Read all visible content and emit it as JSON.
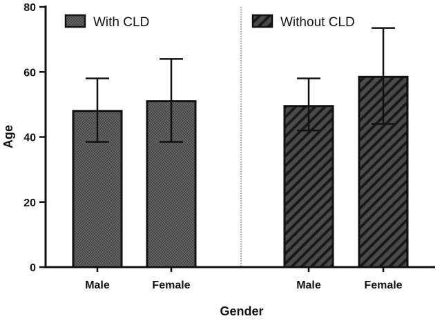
{
  "chart_data": {
    "type": "bar",
    "title": "",
    "xlabel": "Gender",
    "ylabel": "Age",
    "ylim": [
      0,
      80
    ],
    "yticks": [
      0,
      20,
      40,
      60,
      80
    ],
    "grid": false,
    "legend_position": "top",
    "colors": {
      "bar_fill": "#4a4a4a",
      "stroke": "#111111",
      "divider": "#555555"
    },
    "series": [
      {
        "name": "With CLD",
        "pattern": "dots",
        "categories": [
          "Male",
          "Female"
        ],
        "values": [
          48,
          51
        ],
        "error_upper": [
          58,
          64
        ],
        "error_lower": [
          38.5,
          38.5
        ]
      },
      {
        "name": "Without CLD",
        "pattern": "diagonal-stripes",
        "categories": [
          "Male",
          "Female"
        ],
        "values": [
          49.5,
          58.5
        ],
        "error_upper": [
          58,
          73.5
        ],
        "error_lower": [
          42,
          44
        ]
      }
    ]
  }
}
